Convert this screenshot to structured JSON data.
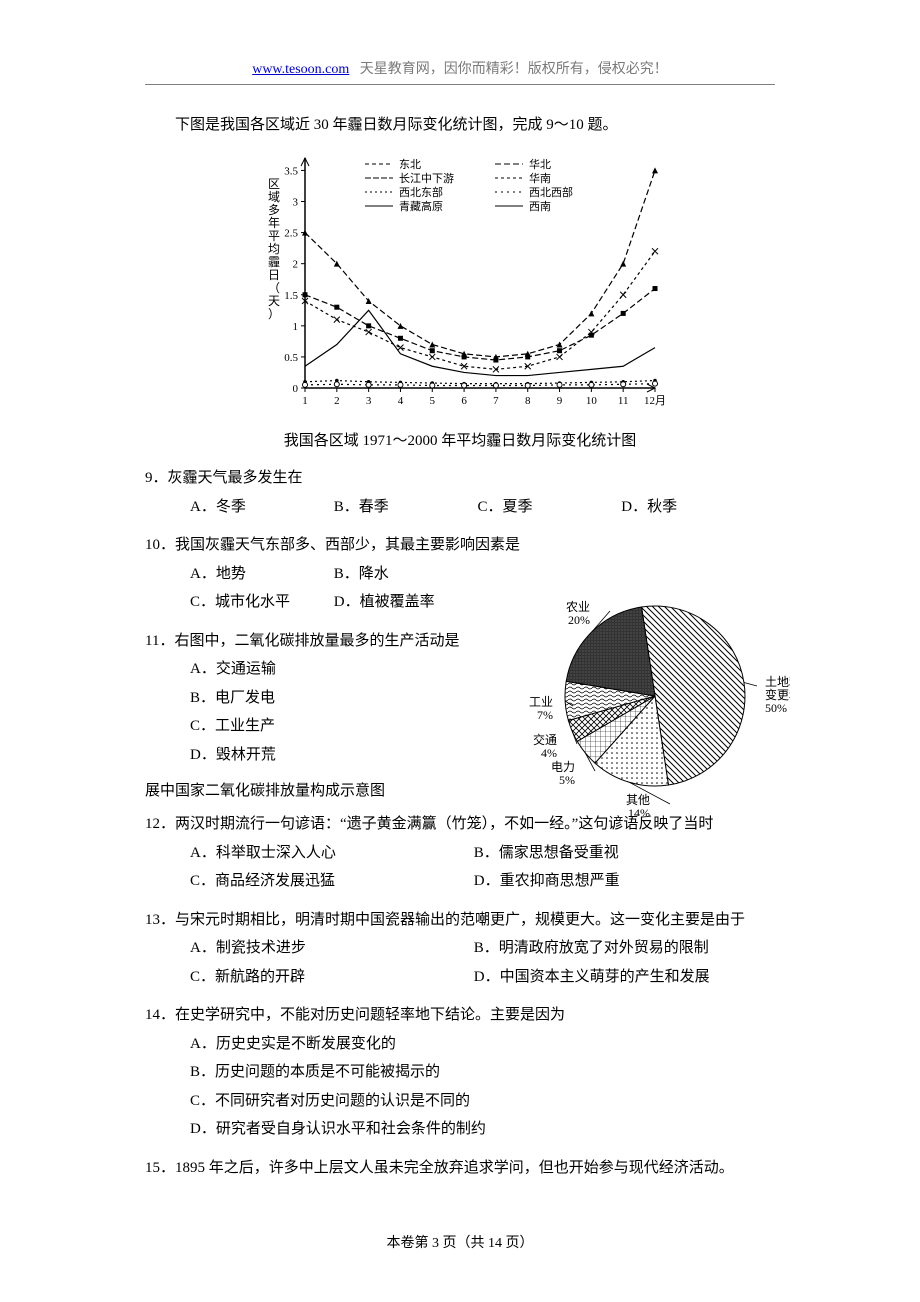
{
  "header": {
    "url": "www.tesoon.com",
    "rest": "   天星教育网，因你而精彩！版权所有，侵权必究！"
  },
  "intro": "下图是我国各区域近 30 年霾日数月际变化统计图，完成 9～10 题。",
  "line_chart": {
    "x_ticks": [
      "1",
      "2",
      "3",
      "4",
      "5",
      "6",
      "7",
      "8",
      "9",
      "10",
      "11",
      "12月"
    ],
    "y_axis_label": "区域多年平均霾日（天）",
    "y_ticks": [
      "0",
      "0.5",
      "1",
      "1.5",
      "2",
      "2.5",
      "3",
      "3.5"
    ],
    "ylim": [
      0,
      3.7
    ],
    "colors": {
      "axis": "#000000",
      "bg": "#ffffff",
      "grid": "#000000"
    },
    "legend": [
      {
        "label": "东北",
        "marker": "diamond",
        "dash": "4 3"
      },
      {
        "label": "华北",
        "marker": "square",
        "dash": "6 3"
      },
      {
        "label": "长江中下游",
        "marker": "triangle",
        "dash": "6 2"
      },
      {
        "label": "华南",
        "marker": "x",
        "dash": "3 3"
      },
      {
        "label": "西北东部",
        "marker": "dot",
        "dash": "2 3"
      },
      {
        "label": "西北西部",
        "marker": "circle",
        "dash": "2 4"
      },
      {
        "label": "青藏高原",
        "marker": "plus",
        "dash": "0"
      },
      {
        "label": "西南",
        "marker": "none",
        "dash": "0"
      }
    ],
    "series": {
      "cjzxy": [
        2.5,
        2.0,
        1.4,
        1.0,
        0.7,
        0.55,
        0.5,
        0.55,
        0.7,
        1.2,
        2.0,
        3.5
      ],
      "huabei": [
        1.5,
        1.3,
        1.0,
        0.8,
        0.6,
        0.5,
        0.45,
        0.5,
        0.6,
        0.85,
        1.2,
        1.6
      ],
      "huanan": [
        1.4,
        1.1,
        0.9,
        0.65,
        0.5,
        0.35,
        0.3,
        0.35,
        0.5,
        0.9,
        1.5,
        2.2
      ],
      "xinan": [
        0.35,
        0.7,
        1.25,
        0.55,
        0.35,
        0.25,
        0.2,
        0.2,
        0.25,
        0.3,
        0.35,
        0.65
      ],
      "base1": [
        0.1,
        0.12,
        0.1,
        0.09,
        0.08,
        0.07,
        0.07,
        0.07,
        0.08,
        0.09,
        0.1,
        0.12
      ],
      "base2": [
        0.05,
        0.06,
        0.05,
        0.05,
        0.04,
        0.04,
        0.04,
        0.04,
        0.05,
        0.05,
        0.06,
        0.07
      ]
    }
  },
  "chart_caption": "我国各区域 1971～2000 年平均霾日数月际变化统计图",
  "pie_chart": {
    "slices": [
      {
        "label": "土地利用变更和林业",
        "value": 50,
        "label_text": "土地利用\n变更和林业\n50%"
      },
      {
        "label": "其他",
        "value": 14,
        "label_text": "其他\n14%"
      },
      {
        "label": "电力",
        "value": 5,
        "label_text": "电力\n5%"
      },
      {
        "label": "交通",
        "value": 4,
        "label_text": "交通\n4%"
      },
      {
        "label": "工业",
        "value": 7,
        "label_text": "工业\n7%"
      },
      {
        "label": "农业",
        "value": 20,
        "label_text": "农业\n20%"
      }
    ],
    "colors": {
      "stroke": "#000000",
      "bg": "#ffffff"
    }
  },
  "questions": {
    "q9": {
      "stem": "9．灰霾天气最多发生在",
      "A": "A．冬季",
      "B": "B．春季",
      "C": "C．夏季",
      "D": "D．秋季"
    },
    "q10": {
      "stem": "10．我国灰霾天气东部多、西部少，其最主要影响因素是",
      "A": "A．地势",
      "B": "B．降水",
      "C": "C．城市化水平",
      "D": "D．植被覆盖率"
    },
    "q11": {
      "stem": "11．右图中，二氧化碳排放量最多的生产活动是",
      "A": "A．交通运输",
      "B": "B．电厂发电",
      "C": "C．工业生产",
      "D": "D．毁林开荒"
    },
    "pie_caption": "展中国家二氧化碳排放量构成示意图",
    "q12": {
      "stem": "12．两汉时期流行一句谚语：“遗子黄金满籯（竹笼），不如一经。”这句谚语反映了当时",
      "A": "A．科举取士深入人心",
      "B": "B．儒家思想备受重视",
      "C": "C．商品经济发展迅猛",
      "D": "D．重农抑商思想严重"
    },
    "q13": {
      "stem": "13．与宋元时期相比，明清时期中国瓷器输出的范嘲更广，规模更大。这一变化主要是由于",
      "A": "A．制瓷技术进步",
      "B": "B．明清政府放宽了对外贸易的限制",
      "C": "C．新航路的开辟",
      "D": "D．中国资本主义萌芽的产生和发展"
    },
    "q14": {
      "stem": "14．在史学研究中，不能对历史问题轻率地下结论。主要是因为",
      "A": "A．历史史实是不断发展变化的",
      "B": "B．历史问题的本质是不可能被揭示的",
      "C": "C．不同研究者对历史问题的认识是不同的",
      "D": "D．研究者受自身认识水平和社会条件的制约"
    },
    "q15": {
      "stem": "15．1895 年之后，许多中上层文人虽未完全放弃追求学问，但也开始参与现代经济活动。"
    }
  },
  "footer": "本卷第 3 页（共 14 页）"
}
